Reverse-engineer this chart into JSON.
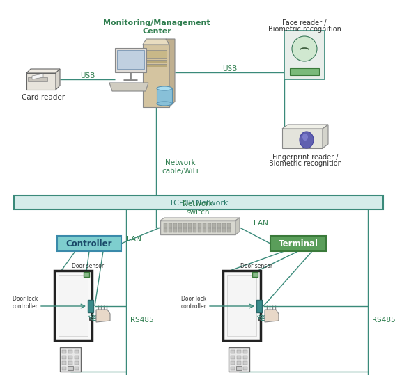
{
  "bg_color": "#ffffff",
  "dark_green": "#2e7d6e",
  "tcp_fill": "#d5ecea",
  "tcp_border": "#3a8a7a",
  "controller_fill": "#7ecece",
  "controller_border": "#3a8aaa",
  "terminal_fill": "#5a9e5a",
  "terminal_border": "#3a7a3a",
  "line_color": "#3a8a7a",
  "text_dark": "#333333",
  "text_green": "#2e7d4e",
  "monitoring_text": "Monitoring/Management\nCenter",
  "tcp_text": "TCP/IP Network",
  "controller_text": "Controller",
  "terminal_text": "Terminal",
  "usb_left": "USB",
  "usb_right": "USB",
  "network_cable": "Network\ncable/WiFi",
  "network_switch_label": "Network\nswitch",
  "lan_left": "LAN",
  "lan_right": "LAN",
  "rs485_left": "RS485",
  "rs485_right": "RS485",
  "card_reader": "Card reader",
  "face_reader_line1": "Face reader /",
  "face_reader_line2": "Biometric recognition",
  "fingerprint_line1": "Fingerprint reader /",
  "fingerprint_line2": "Biometric recognition",
  "door_sensor_left": "Door sensor",
  "door_sensor_right": "Door sensor",
  "door_lock_left": "Door lock\ncontroller",
  "door_lock_right": "Door lock\ncontroller"
}
